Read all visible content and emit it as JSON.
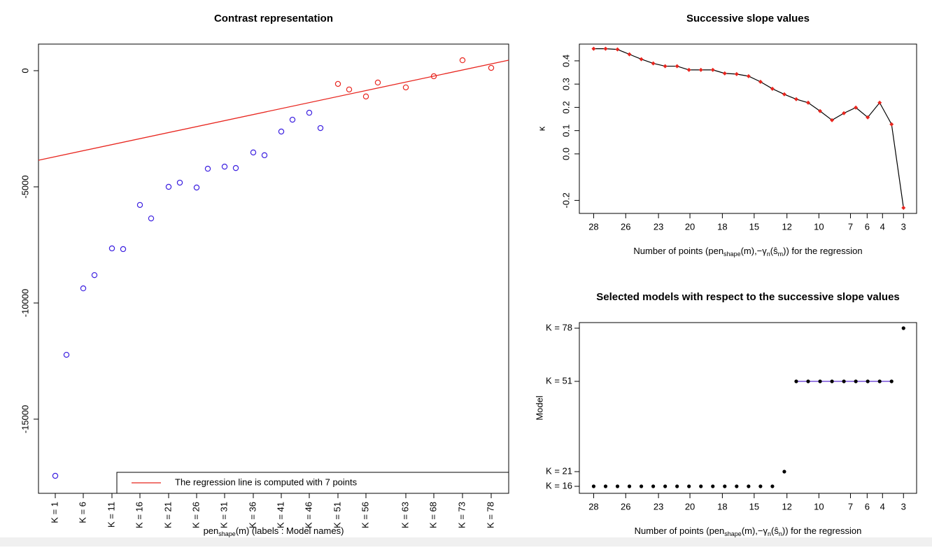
{
  "chart_data": [
    {
      "type": "scatter",
      "title": "Contrast representation",
      "x_label": [
        "pen",
        "shape",
        "(m) (labels : Model names)"
      ],
      "marker": "open-circle",
      "series": [
        {
          "color": "#3b1fe0",
          "x": [
            24,
            40,
            64,
            80,
            105,
            121,
            145,
            161,
            186,
            202,
            226,
            242,
            266,
            282,
            307,
            323,
            347,
            363,
            387,
            403
          ],
          "values": [
            -17440,
            -12230,
            -9370,
            -8800,
            -7650,
            -7680,
            -5780,
            -6360,
            -5000,
            -4820,
            -5030,
            -4220,
            -4130,
            -4190,
            -3520,
            -3640,
            -2620,
            -2110,
            -1810,
            -2470
          ]
        },
        {
          "color": "#e8261f",
          "x": [
            428,
            444,
            468,
            485,
            525,
            565,
            606,
            647
          ],
          "values": [
            -570,
            -810,
            -1110,
            -510,
            -720,
            -240,
            450,
            120
          ]
        }
      ],
      "regression_line": {
        "color": "#e8261f",
        "x": [
          0,
          672
        ],
        "values": [
          -3855,
          452
        ]
      },
      "legend": {
        "text": "The regression line is computed with 7 points",
        "position": "bottom-right"
      },
      "xlim": [
        0,
        672
      ],
      "ylim": [
        -18193,
        1145
      ],
      "xticks": [
        {
          "value": 24,
          "label": "K = 1"
        },
        {
          "value": 64,
          "label": "K = 6"
        },
        {
          "value": 105,
          "label": "K = 11"
        },
        {
          "value": 145,
          "label": "K = 16"
        },
        {
          "value": 186,
          "label": "K = 21"
        },
        {
          "value": 226,
          "label": "K = 26"
        },
        {
          "value": 266,
          "label": "K = 31"
        },
        {
          "value": 307,
          "label": "K = 36"
        },
        {
          "value": 347,
          "label": "K = 41"
        },
        {
          "value": 387,
          "label": "K = 46"
        },
        {
          "value": 428,
          "label": "K = 51"
        },
        {
          "value": 468,
          "label": "K = 56"
        },
        {
          "value": 525,
          "label": "K = 63"
        },
        {
          "value": 565,
          "label": "K = 68"
        },
        {
          "value": 606,
          "label": "K = 73"
        },
        {
          "value": 647,
          "label": "K = 78"
        }
      ],
      "yticks": [
        0,
        -5000,
        -10000,
        -15000
      ]
    },
    {
      "type": "line",
      "title": "Successive slope values",
      "x_label": [
        "Number of points (pen",
        "shape",
        "(m),−γ",
        "n",
        "(ŝ",
        "m",
        ")) for the regression"
      ],
      "y_label": "κ",
      "line_color": "#000000",
      "marker_color": "#e8261f",
      "x": [
        0,
        1,
        2,
        3,
        4,
        5,
        6,
        7,
        8,
        9,
        10,
        11,
        12,
        13,
        14,
        15,
        16,
        17,
        18,
        19,
        20,
        21,
        22,
        23,
        24,
        25,
        26
      ],
      "values": [
        0.452,
        0.452,
        0.449,
        0.428,
        0.407,
        0.389,
        0.377,
        0.377,
        0.361,
        0.361,
        0.361,
        0.346,
        0.343,
        0.334,
        0.31,
        0.28,
        0.256,
        0.235,
        0.22,
        0.184,
        0.145,
        0.175,
        0.199,
        0.157,
        0.22,
        0.127,
        -0.232
      ],
      "xlim": [
        -1.2,
        27.1
      ],
      "ylim": [
        -0.256,
        0.472
      ],
      "xticks": [
        {
          "value": 0,
          "label": "28"
        },
        {
          "value": 2.69,
          "label": "26"
        },
        {
          "value": 5.44,
          "label": "23"
        },
        {
          "value": 8.08,
          "label": "20"
        },
        {
          "value": 10.8,
          "label": "18"
        },
        {
          "value": 13.47,
          "label": "15"
        },
        {
          "value": 16.22,
          "label": "12"
        },
        {
          "value": 18.9,
          "label": "10"
        },
        {
          "value": 21.55,
          "label": "7"
        },
        {
          "value": 22.95,
          "label": "6"
        },
        {
          "value": 24.24,
          "label": "4"
        },
        {
          "value": 26,
          "label": "3"
        }
      ],
      "yticks": [
        0.4,
        0.3,
        0.2,
        0.1,
        {
          "value": 0,
          "label": "0.0"
        },
        -0.2
      ]
    },
    {
      "type": "scatter",
      "title": "Selected models with respect to the successive slope values",
      "x_label": [
        "Number of points (pen",
        "shape",
        "(m),−γ",
        "n",
        "(ŝ",
        "n",
        ")) for the regression"
      ],
      "y_label": "Model",
      "marker": "dot",
      "series": [
        {
          "color": "#000000",
          "x": [
            0,
            1,
            2,
            3,
            4,
            5,
            6,
            7,
            8,
            9,
            10,
            11,
            12,
            13,
            14,
            15,
            16,
            17,
            18,
            19,
            20,
            21,
            22,
            23,
            24,
            25,
            26
          ],
          "values": [
            0,
            0,
            0,
            0,
            0,
            0,
            0,
            0,
            0,
            0,
            0,
            0,
            0,
            0,
            0,
            0,
            21,
            150,
            150,
            150,
            150,
            150,
            150,
            150,
            150,
            150,
            226
          ]
        }
      ],
      "highlight_run": {
        "from": 17,
        "to": 25,
        "color": "#5b2fd0"
      },
      "xlim": [
        -1.2,
        27.1
      ],
      "ylim": [
        -10,
        234
      ],
      "xticks": [
        {
          "value": 0,
          "label": "28"
        },
        {
          "value": 2.69,
          "label": "26"
        },
        {
          "value": 5.44,
          "label": "23"
        },
        {
          "value": 8.08,
          "label": "20"
        },
        {
          "value": 10.8,
          "label": "18"
        },
        {
          "value": 13.47,
          "label": "15"
        },
        {
          "value": 16.22,
          "label": "12"
        },
        {
          "value": 18.9,
          "label": "10"
        },
        {
          "value": 21.55,
          "label": "7"
        },
        {
          "value": 22.95,
          "label": "6"
        },
        {
          "value": 24.24,
          "label": "4"
        },
        {
          "value": 26,
          "label": "3"
        }
      ],
      "yticks": [
        {
          "value": 0,
          "label": "K = 16"
        },
        {
          "value": 21,
          "label": "K = 21"
        },
        {
          "value": 150,
          "label": "K = 51"
        },
        {
          "value": 226,
          "label": "K = 78"
        }
      ]
    }
  ]
}
